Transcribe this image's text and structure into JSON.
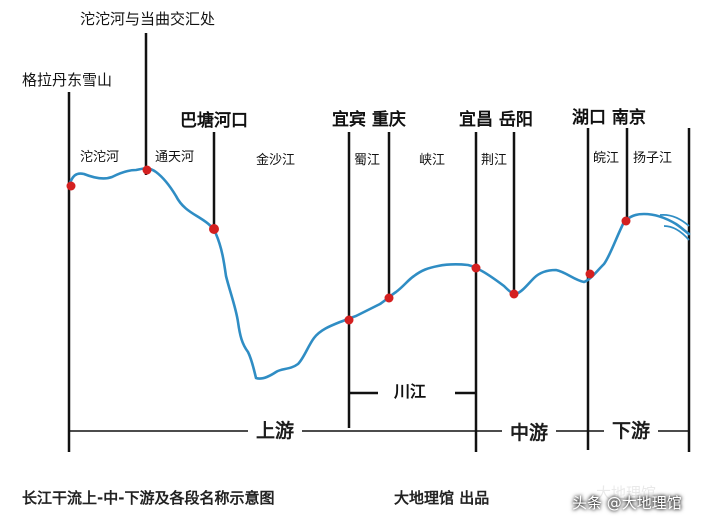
{
  "labels": {
    "source_junction": "沱沱河与当曲交汇处",
    "source_mountain": "格拉丹东雪山",
    "batang_river_mouth": "巴塘河口",
    "yibin_chongqing": "宜宾 重庆",
    "yichang_yueyang": "宜昌 岳阳",
    "hukou_nanjing": "湖口 南京"
  },
  "rivers": {
    "tuotuo": "沱沱河",
    "tongtian": "通天河",
    "jinsha": "金沙江",
    "shu": "蜀江",
    "xia": "峡江",
    "jing": "荆江",
    "wan": "皖江",
    "yangtze": "扬子江"
  },
  "segments": {
    "chuanjiang": "川江",
    "upper": "上游",
    "middle": "中游",
    "lower": "下游"
  },
  "footer": {
    "title": "长江干流上-中-下游及各段名称示意图",
    "publisher": "大地理馆 出品",
    "platform_credit": "头条 @大地理馆",
    "watermark_ghost": "大地理馆"
  },
  "colors": {
    "river": "#2f8dc4",
    "node": "#d42020",
    "line": "#111111"
  }
}
